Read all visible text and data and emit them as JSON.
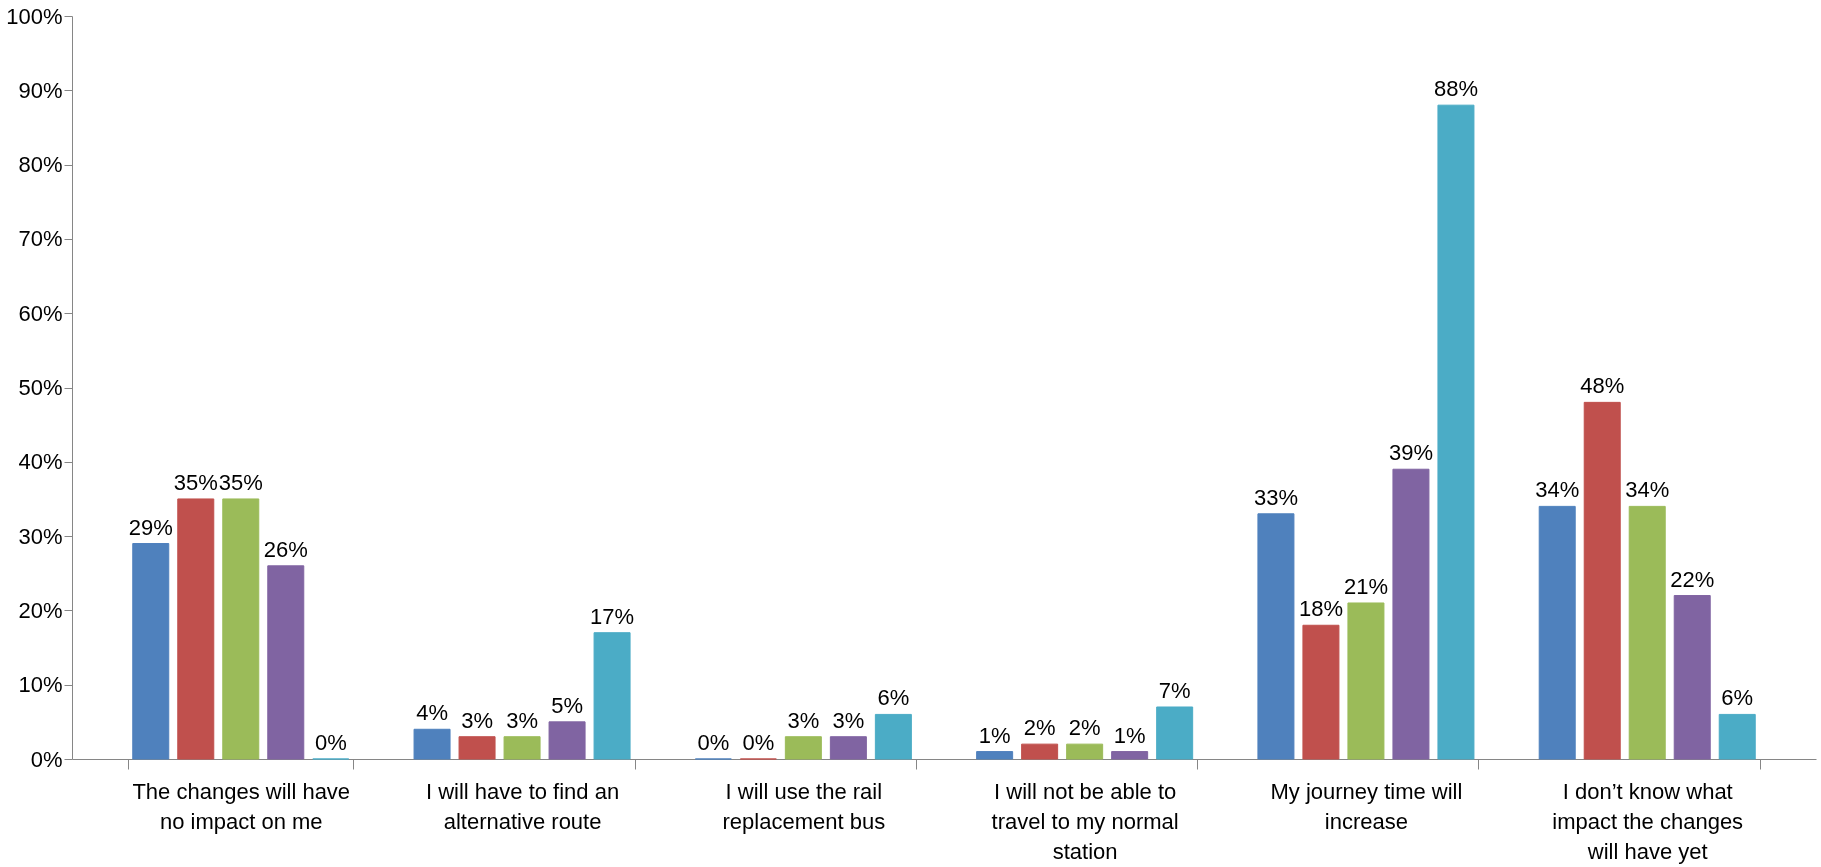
{
  "chart_data": {
    "type": "bar",
    "categories": [
      "The changes will have no impact on me",
      "I will have to find an alternative route",
      "I will use the rail replacement bus",
      "I will not be able to travel to my normal station",
      "My journey time will increase",
      "I don’t know what impact the changes will have yet"
    ],
    "series": [
      {
        "color": "#4f81bd",
        "values": [
          29,
          4,
          0,
          1,
          33,
          34
        ],
        "value_labels": [
          "29%",
          "4%",
          "0%",
          "1%",
          "33%",
          "34%"
        ]
      },
      {
        "color": "#c0504d",
        "values": [
          35,
          3,
          0,
          2,
          18,
          48
        ],
        "value_labels": [
          "35%",
          "3%",
          "0%",
          "2%",
          "18%",
          "48%"
        ]
      },
      {
        "color": "#9bbb59",
        "values": [
          35,
          3,
          3,
          2,
          21,
          34
        ],
        "value_labels": [
          "35%",
          "3%",
          "3%",
          "2%",
          "21%",
          "34%"
        ]
      },
      {
        "color": "#8064a2",
        "values": [
          26,
          5,
          3,
          1,
          39,
          22
        ],
        "value_labels": [
          "26%",
          "5%",
          "3%",
          "1%",
          "39%",
          "22%"
        ]
      },
      {
        "color": "#4bacc6",
        "values": [
          0,
          17,
          6,
          7,
          88,
          6
        ],
        "value_labels": [
          "0%",
          "17%",
          "6%",
          "7%",
          "88%",
          "6%"
        ]
      }
    ],
    "ylim": [
      0,
      100
    ],
    "yticks": [
      {
        "value": 0,
        "label": "0%"
      },
      {
        "value": 10,
        "label": "10%"
      },
      {
        "value": 20,
        "label": "20%"
      },
      {
        "value": 30,
        "label": "30%"
      },
      {
        "value": 40,
        "label": "40%"
      },
      {
        "value": 50,
        "label": "50%"
      },
      {
        "value": 60,
        "label": "60%"
      },
      {
        "value": 70,
        "label": "70%"
      },
      {
        "value": 80,
        "label": "80%"
      },
      {
        "value": 90,
        "label": "90%"
      },
      {
        "value": 100,
        "label": "100%"
      }
    ],
    "grid": false,
    "legend": false
  }
}
